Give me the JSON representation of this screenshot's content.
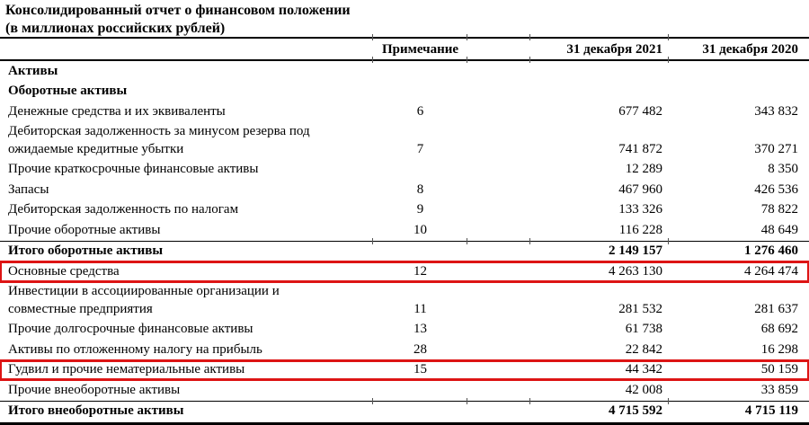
{
  "document": {
    "title_line1": "Консолидированный отчет о финансовом положении",
    "title_line2": "(в миллионах российских рублей)"
  },
  "table": {
    "header": {
      "note": "Примечание",
      "y2021": "31 декабря 2021",
      "y2020": "31 декабря 2020"
    },
    "rows": [
      {
        "kind": "section",
        "label": "Активы",
        "note": "",
        "v2021": "",
        "v2020": ""
      },
      {
        "kind": "section",
        "label": "Оборотные активы",
        "note": "",
        "v2021": "",
        "v2020": ""
      },
      {
        "kind": "item",
        "label": "Денежные средства и их эквиваленты",
        "note": "6",
        "v2021": "677 482",
        "v2020": "343 832"
      },
      {
        "kind": "item",
        "label": "Дебиторская задолженность за минусом резерва под\nожидаемые кредитные убытки",
        "note": "7",
        "v2021": "741 872",
        "v2020": "370 271"
      },
      {
        "kind": "item",
        "label": "Прочие краткосрочные финансовые активы",
        "note": "",
        "v2021": "12 289",
        "v2020": "8 350"
      },
      {
        "kind": "item",
        "label": "Запасы",
        "note": "8",
        "v2021": "467 960",
        "v2020": "426 536"
      },
      {
        "kind": "item",
        "label": "Дебиторская задолженность по налогам",
        "note": "9",
        "v2021": "133 326",
        "v2020": "78 822"
      },
      {
        "kind": "item",
        "label": "Прочие оборотные активы",
        "note": "10",
        "v2021": "116 228",
        "v2020": "48 649"
      },
      {
        "kind": "total",
        "label": "Итого оборотные активы",
        "note": "",
        "v2021": "2 149 157",
        "v2020": "1 276 460"
      },
      {
        "kind": "item",
        "highlighted": true,
        "label": "Основные средства",
        "note": "12",
        "v2021": "4 263 130",
        "v2020": "4 264 474"
      },
      {
        "kind": "item",
        "label": "Инвестиции в ассоциированные организации и\nсовместные предприятия",
        "note": "11",
        "v2021": "281 532",
        "v2020": "281 637"
      },
      {
        "kind": "item",
        "label": "Прочие долгосрочные финансовые активы",
        "note": "13",
        "v2021": "61 738",
        "v2020": "68 692"
      },
      {
        "kind": "item",
        "label": "Активы по отложенному налогу на прибыль",
        "note": "28",
        "v2021": "22 842",
        "v2020": "16 298"
      },
      {
        "kind": "item",
        "highlighted": true,
        "label": "Гудвил и прочие нематериальные активы",
        "note": "15",
        "v2021": "44 342",
        "v2020": "50 159"
      },
      {
        "kind": "item",
        "label": "Прочие внеоборотные активы",
        "note": "",
        "v2021": "42 008",
        "v2020": "33 859"
      },
      {
        "kind": "total",
        "label": "Итого внеоборотные активы",
        "note": "",
        "v2021": "4 715 592",
        "v2020": "4 715 119"
      }
    ]
  },
  "colors": {
    "highlight": "#dd1414",
    "text": "#000000",
    "rule": "#000000"
  }
}
